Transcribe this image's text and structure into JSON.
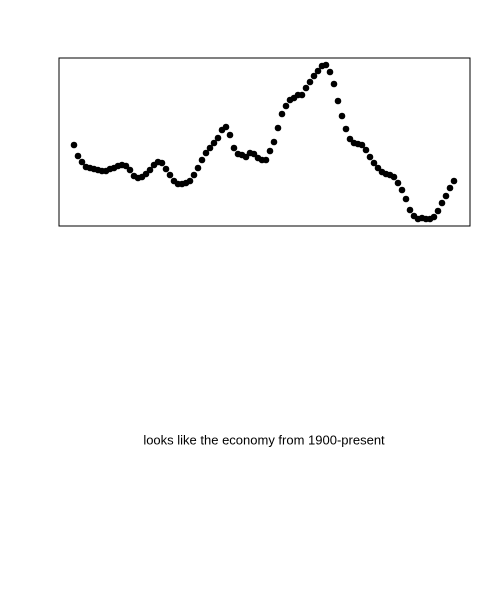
{
  "chart_data": {
    "type": "scatter",
    "caption": "looks like the economy from 1900-present",
    "color": "#000000",
    "xlim": [
      0,
      411
    ],
    "ylim": [
      0,
      168
    ],
    "x": [
      15,
      19,
      23,
      27,
      31,
      35,
      39,
      43,
      47,
      51,
      55,
      59,
      63,
      67,
      71,
      75,
      79,
      83,
      87,
      91,
      95,
      99,
      103,
      107,
      111,
      115,
      119,
      123,
      127,
      131,
      135,
      139,
      143,
      147,
      151,
      155,
      159,
      163,
      167,
      171,
      175,
      179,
      183,
      187,
      191,
      195,
      199,
      203,
      207,
      211,
      215,
      219,
      223,
      227,
      231,
      235,
      239,
      243,
      247,
      251,
      255,
      259,
      263,
      267,
      271,
      275,
      279,
      283,
      287,
      291,
      295,
      299,
      303,
      307,
      311,
      315,
      319,
      323,
      327,
      331,
      335,
      339,
      343,
      347,
      351,
      355,
      359,
      363,
      367,
      371,
      375,
      379,
      383,
      387,
      391,
      395
    ],
    "values": [
      81,
      70,
      64,
      59,
      58,
      57,
      56,
      55,
      55,
      57,
      58,
      60,
      61,
      60,
      56,
      50,
      48,
      49,
      52,
      56,
      61,
      64,
      63,
      57,
      51,
      45,
      42,
      42,
      43,
      45,
      51,
      58,
      66,
      73,
      78,
      83,
      88,
      96,
      99,
      91,
      78,
      72,
      71,
      69,
      73,
      72,
      68,
      66,
      66,
      75,
      84,
      98,
      112,
      120,
      126,
      128,
      131,
      131,
      138,
      144,
      150,
      155,
      160,
      161,
      154,
      142,
      125,
      110,
      97,
      87,
      83,
      82,
      81,
      76,
      69,
      63,
      58,
      54,
      52,
      51,
      49,
      43,
      36,
      27,
      16,
      10,
      7,
      8,
      7,
      7,
      9,
      15,
      23,
      30,
      38,
      45
    ]
  }
}
